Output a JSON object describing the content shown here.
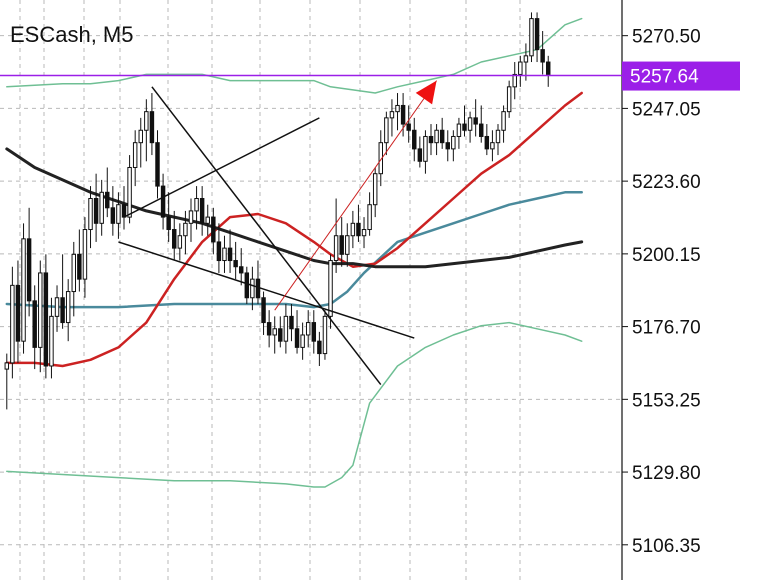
{
  "chart_data": {
    "type": "candlestick",
    "title": "ESCash, M5",
    "ylim": [
      5095,
      5282
    ],
    "yticks": [
      "5270.50",
      "5247.05",
      "5223.60",
      "5200.15",
      "5176.70",
      "5153.25",
      "5129.80",
      "5106.35"
    ],
    "ytick_values": [
      5270.5,
      5247.05,
      5223.6,
      5200.15,
      5176.7,
      5153.25,
      5129.8,
      5106.35
    ],
    "current_price": {
      "label": "5257.64",
      "value": 5257.64,
      "color": "#9b1fe8"
    },
    "grid": true,
    "grid_style": "dashed",
    "x_count": 110,
    "candles": [
      {
        "o": 5163,
        "h": 5168,
        "l": 5150,
        "c": 5165
      },
      {
        "o": 5165,
        "h": 5196,
        "l": 5160,
        "c": 5190
      },
      {
        "o": 5190,
        "h": 5198,
        "l": 5165,
        "c": 5172
      },
      {
        "o": 5172,
        "h": 5210,
        "l": 5168,
        "c": 5205
      },
      {
        "o": 5205,
        "h": 5215,
        "l": 5180,
        "c": 5185
      },
      {
        "o": 5185,
        "h": 5190,
        "l": 5163,
        "c": 5170
      },
      {
        "o": 5170,
        "h": 5198,
        "l": 5162,
        "c": 5194
      },
      {
        "o": 5194,
        "h": 5200,
        "l": 5160,
        "c": 5164
      },
      {
        "o": 5164,
        "h": 5186,
        "l": 5160,
        "c": 5180
      },
      {
        "o": 5180,
        "h": 5190,
        "l": 5175,
        "c": 5186
      },
      {
        "o": 5186,
        "h": 5200,
        "l": 5176,
        "c": 5178
      },
      {
        "o": 5178,
        "h": 5192,
        "l": 5172,
        "c": 5188
      },
      {
        "o": 5188,
        "h": 5204,
        "l": 5180,
        "c": 5200
      },
      {
        "o": 5200,
        "h": 5208,
        "l": 5188,
        "c": 5192
      },
      {
        "o": 5192,
        "h": 5212,
        "l": 5186,
        "c": 5208
      },
      {
        "o": 5208,
        "h": 5222,
        "l": 5202,
        "c": 5218
      },
      {
        "o": 5218,
        "h": 5226,
        "l": 5204,
        "c": 5210
      },
      {
        "o": 5210,
        "h": 5224,
        "l": 5206,
        "c": 5220
      },
      {
        "o": 5220,
        "h": 5228,
        "l": 5212,
        "c": 5215
      },
      {
        "o": 5215,
        "h": 5222,
        "l": 5206,
        "c": 5210
      },
      {
        "o": 5210,
        "h": 5220,
        "l": 5205,
        "c": 5216
      },
      {
        "o": 5216,
        "h": 5222,
        "l": 5208,
        "c": 5212
      },
      {
        "o": 5212,
        "h": 5232,
        "l": 5210,
        "c": 5228
      },
      {
        "o": 5228,
        "h": 5240,
        "l": 5222,
        "c": 5236
      },
      {
        "o": 5236,
        "h": 5244,
        "l": 5228,
        "c": 5240
      },
      {
        "o": 5240,
        "h": 5250,
        "l": 5230,
        "c": 5246
      },
      {
        "o": 5246,
        "h": 5252,
        "l": 5232,
        "c": 5236
      },
      {
        "o": 5236,
        "h": 5240,
        "l": 5218,
        "c": 5222
      },
      {
        "o": 5222,
        "h": 5226,
        "l": 5208,
        "c": 5212
      },
      {
        "o": 5212,
        "h": 5220,
        "l": 5204,
        "c": 5208
      },
      {
        "o": 5208,
        "h": 5214,
        "l": 5198,
        "c": 5202
      },
      {
        "o": 5202,
        "h": 5210,
        "l": 5198,
        "c": 5206
      },
      {
        "o": 5206,
        "h": 5214,
        "l": 5200,
        "c": 5210
      },
      {
        "o": 5210,
        "h": 5218,
        "l": 5204,
        "c": 5214
      },
      {
        "o": 5214,
        "h": 5222,
        "l": 5208,
        "c": 5218
      },
      {
        "o": 5218,
        "h": 5222,
        "l": 5206,
        "c": 5210
      },
      {
        "o": 5210,
        "h": 5216,
        "l": 5206,
        "c": 5212
      },
      {
        "o": 5212,
        "h": 5215,
        "l": 5200,
        "c": 5204
      },
      {
        "o": 5204,
        "h": 5210,
        "l": 5194,
        "c": 5198
      },
      {
        "o": 5198,
        "h": 5206,
        "l": 5194,
        "c": 5202
      },
      {
        "o": 5202,
        "h": 5208,
        "l": 5194,
        "c": 5198
      },
      {
        "o": 5198,
        "h": 5204,
        "l": 5192,
        "c": 5196
      },
      {
        "o": 5196,
        "h": 5202,
        "l": 5190,
        "c": 5194
      },
      {
        "o": 5194,
        "h": 5196,
        "l": 5184,
        "c": 5186
      },
      {
        "o": 5186,
        "h": 5196,
        "l": 5182,
        "c": 5192
      },
      {
        "o": 5192,
        "h": 5198,
        "l": 5184,
        "c": 5186
      },
      {
        "o": 5186,
        "h": 5188,
        "l": 5174,
        "c": 5178
      },
      {
        "o": 5178,
        "h": 5182,
        "l": 5170,
        "c": 5174
      },
      {
        "o": 5174,
        "h": 5180,
        "l": 5168,
        "c": 5176
      },
      {
        "o": 5176,
        "h": 5180,
        "l": 5170,
        "c": 5172
      },
      {
        "o": 5172,
        "h": 5184,
        "l": 5168,
        "c": 5180
      },
      {
        "o": 5180,
        "h": 5184,
        "l": 5172,
        "c": 5176
      },
      {
        "o": 5176,
        "h": 5182,
        "l": 5168,
        "c": 5170
      },
      {
        "o": 5170,
        "h": 5178,
        "l": 5166,
        "c": 5174
      },
      {
        "o": 5174,
        "h": 5182,
        "l": 5170,
        "c": 5178
      },
      {
        "o": 5178,
        "h": 5182,
        "l": 5168,
        "c": 5172
      },
      {
        "o": 5172,
        "h": 5175,
        "l": 5164,
        "c": 5168
      },
      {
        "o": 5168,
        "h": 5182,
        "l": 5166,
        "c": 5180
      },
      {
        "o": 5180,
        "h": 5200,
        "l": 5176,
        "c": 5198
      },
      {
        "o": 5198,
        "h": 5218,
        "l": 5194,
        "c": 5206
      },
      {
        "o": 5206,
        "h": 5212,
        "l": 5196,
        "c": 5200
      },
      {
        "o": 5200,
        "h": 5210,
        "l": 5196,
        "c": 5206
      },
      {
        "o": 5206,
        "h": 5214,
        "l": 5202,
        "c": 5210
      },
      {
        "o": 5210,
        "h": 5216,
        "l": 5204,
        "c": 5206
      },
      {
        "o": 5206,
        "h": 5212,
        "l": 5202,
        "c": 5208
      },
      {
        "o": 5208,
        "h": 5220,
        "l": 5206,
        "c": 5216
      },
      {
        "o": 5216,
        "h": 5228,
        "l": 5212,
        "c": 5226
      },
      {
        "o": 5226,
        "h": 5240,
        "l": 5222,
        "c": 5236
      },
      {
        "o": 5236,
        "h": 5246,
        "l": 5232,
        "c": 5244
      },
      {
        "o": 5244,
        "h": 5250,
        "l": 5238,
        "c": 5246
      },
      {
        "o": 5246,
        "h": 5252,
        "l": 5240,
        "c": 5248
      },
      {
        "o": 5248,
        "h": 5252,
        "l": 5238,
        "c": 5242
      },
      {
        "o": 5242,
        "h": 5248,
        "l": 5236,
        "c": 5240
      },
      {
        "o": 5240,
        "h": 5244,
        "l": 5230,
        "c": 5234
      },
      {
        "o": 5234,
        "h": 5238,
        "l": 5228,
        "c": 5230
      },
      {
        "o": 5230,
        "h": 5240,
        "l": 5226,
        "c": 5238
      },
      {
        "o": 5238,
        "h": 5242,
        "l": 5232,
        "c": 5236
      },
      {
        "o": 5236,
        "h": 5242,
        "l": 5232,
        "c": 5240
      },
      {
        "o": 5240,
        "h": 5244,
        "l": 5234,
        "c": 5236
      },
      {
        "o": 5236,
        "h": 5240,
        "l": 5230,
        "c": 5234
      },
      {
        "o": 5234,
        "h": 5240,
        "l": 5230,
        "c": 5238
      },
      {
        "o": 5238,
        "h": 5244,
        "l": 5234,
        "c": 5242
      },
      {
        "o": 5242,
        "h": 5248,
        "l": 5238,
        "c": 5240
      },
      {
        "o": 5240,
        "h": 5246,
        "l": 5236,
        "c": 5244
      },
      {
        "o": 5244,
        "h": 5250,
        "l": 5238,
        "c": 5242
      },
      {
        "o": 5242,
        "h": 5248,
        "l": 5236,
        "c": 5238
      },
      {
        "o": 5238,
        "h": 5242,
        "l": 5232,
        "c": 5234
      },
      {
        "o": 5234,
        "h": 5240,
        "l": 5230,
        "c": 5236
      },
      {
        "o": 5236,
        "h": 5242,
        "l": 5232,
        "c": 5240
      },
      {
        "o": 5240,
        "h": 5248,
        "l": 5236,
        "c": 5246
      },
      {
        "o": 5246,
        "h": 5256,
        "l": 5244,
        "c": 5254
      },
      {
        "o": 5254,
        "h": 5262,
        "l": 5250,
        "c": 5258
      },
      {
        "o": 5258,
        "h": 5264,
        "l": 5254,
        "c": 5262
      },
      {
        "o": 5262,
        "h": 5268,
        "l": 5256,
        "c": 5264
      },
      {
        "o": 5264,
        "h": 5278,
        "l": 5262,
        "c": 5276
      },
      {
        "o": 5276,
        "h": 5278,
        "l": 5262,
        "c": 5266
      },
      {
        "o": 5266,
        "h": 5272,
        "l": 5258,
        "c": 5262
      },
      {
        "o": 5262,
        "h": 5264,
        "l": 5254,
        "c": 5258
      }
    ],
    "series": [
      {
        "type": "line",
        "color": "#4a8a9c",
        "width": 2.5,
        "x": [
          0,
          10,
          20,
          30,
          40,
          50,
          55,
          58,
          61,
          64,
          67,
          70,
          75,
          80,
          85,
          90,
          95,
          100,
          103
        ],
        "values": [
          5184,
          5183,
          5183,
          5184,
          5184,
          5184,
          5183,
          5184,
          5188,
          5194,
          5199,
          5204,
          5207,
          5210,
          5213,
          5216,
          5218,
          5220,
          5220
        ]
      },
      {
        "type": "line",
        "color": "#cc2222",
        "width": 2.5,
        "x": [
          0,
          5,
          10,
          15,
          20,
          25,
          30,
          35,
          40,
          45,
          50,
          55,
          58,
          62,
          66,
          70,
          75,
          80,
          85,
          90,
          95,
          100,
          103
        ],
        "values": [
          5165,
          5165,
          5164,
          5166,
          5170,
          5178,
          5192,
          5204,
          5212,
          5213,
          5210,
          5204,
          5200,
          5196,
          5197,
          5202,
          5210,
          5218,
          5226,
          5232,
          5240,
          5248,
          5252
        ]
      },
      {
        "type": "line",
        "color": "#222222",
        "width": 3,
        "x": [
          0,
          5,
          10,
          15,
          20,
          25,
          30,
          35,
          40,
          45,
          50,
          55,
          58,
          62,
          66,
          70,
          75,
          80,
          85,
          90,
          95,
          100,
          103
        ],
        "values": [
          5234,
          5228,
          5224,
          5220,
          5217,
          5214,
          5212,
          5210,
          5207,
          5204,
          5201,
          5198,
          5197,
          5197,
          5196,
          5196,
          5196,
          5197,
          5198,
          5199,
          5201,
          5203,
          5204
        ]
      },
      {
        "type": "line",
        "color": "#6fbf94",
        "width": 1.5,
        "x": [
          0,
          10,
          15,
          20,
          25,
          30,
          35,
          40,
          45,
          50,
          55,
          58,
          62,
          66,
          70,
          75,
          80,
          85,
          90,
          95,
          100,
          103
        ],
        "values": [
          5254,
          5255,
          5255,
          5256,
          5258,
          5258,
          5258,
          5256,
          5256,
          5256,
          5256,
          5254,
          5253,
          5252,
          5254,
          5256,
          5258,
          5262,
          5264,
          5266,
          5274,
          5276
        ]
      },
      {
        "type": "line",
        "color": "#6fbf94",
        "width": 1.5,
        "x": [
          0,
          10,
          20,
          30,
          40,
          50,
          55,
          57,
          60,
          62,
          65,
          70,
          75,
          80,
          85,
          90,
          95,
          100,
          103
        ],
        "values": [
          5130,
          5129,
          5128,
          5127,
          5127,
          5126,
          5125,
          5125,
          5128,
          5132,
          5152,
          5164,
          5170,
          5174,
          5177,
          5178,
          5176,
          5174,
          5172
        ]
      }
    ],
    "drawings": [
      {
        "color": "#111111",
        "width": 1.5,
        "arrow": false,
        "points": [
          [
            21,
            5212
          ],
          [
            56,
            5244
          ]
        ]
      },
      {
        "color": "#111111",
        "width": 1.5,
        "arrow": false,
        "points": [
          [
            20,
            5204
          ],
          [
            73,
            5173
          ]
        ]
      },
      {
        "color": "#111111",
        "width": 1.5,
        "arrow": false,
        "points": [
          [
            26,
            5254
          ],
          [
            67,
            5158
          ]
        ]
      },
      {
        "color": "#cc2222",
        "width": 1,
        "arrow": true,
        "points": [
          [
            48,
            5182
          ],
          [
            77,
            5256
          ]
        ]
      }
    ]
  }
}
